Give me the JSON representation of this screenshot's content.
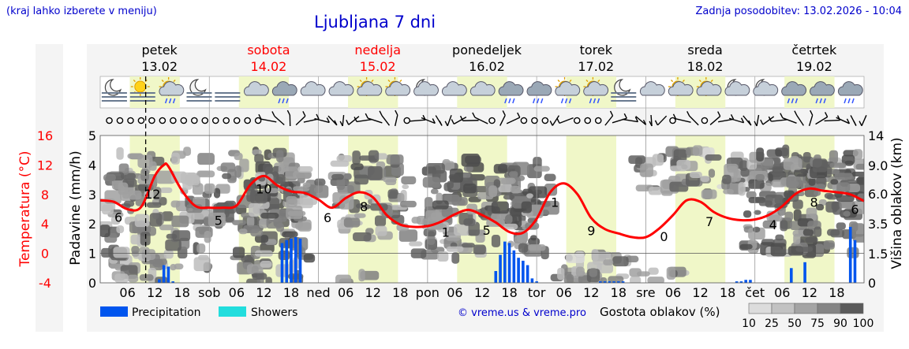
{
  "header": {
    "hint": "(kraj lahko izberete v meniju)",
    "title": "Ljubljana 7 dni",
    "updated": "Zadnja posodobitev: 13.02.2026 - 10:04"
  },
  "days": [
    {
      "name": "petek",
      "date": "13.02",
      "weekend": false
    },
    {
      "name": "sobota",
      "date": "14.02",
      "weekend": true
    },
    {
      "name": "nedelja",
      "date": "15.02",
      "weekend": true
    },
    {
      "name": "ponedeljek",
      "date": "16.02",
      "weekend": false
    },
    {
      "name": "torek",
      "date": "17.02",
      "weekend": false
    },
    {
      "name": "sreda",
      "date": "18.02",
      "weekend": false
    },
    {
      "name": "četrtek",
      "date": "19.02",
      "weekend": false
    }
  ],
  "weather_icons": [
    "moon-fog-icon",
    "sun-fog-icon",
    "sun-rain-icon",
    "moon-fog-icon",
    "fog-icon",
    "cloud-icon",
    "rain-cloud-icon",
    "cloud-icon",
    "cloud-icon",
    "sun-cloud-icon",
    "sun-cloud-icon",
    "moon-cloud-icon",
    "cloud-icon",
    "cloud-icon",
    "rain-cloud-icon",
    "rain-cloud-icon",
    "sun-rain-icon",
    "sun-rain-icon",
    "moon-fog-icon",
    "cloud-icon",
    "sun-cloud-icon",
    "sun-cloud-icon",
    "moon-cloud-icon",
    "moon-cloud-icon",
    "rain-cloud-icon",
    "rain-cloud-icon",
    "rain-cloud-icon"
  ],
  "wind_symbols": [
    "calm",
    "calm",
    "calm",
    "calm",
    "calm",
    "calm",
    "calm",
    "calm",
    "calm",
    "calm",
    "calm",
    "calm",
    "calm",
    "calm",
    "calm",
    "barb",
    "barb",
    "barb",
    "barb",
    "barb",
    "barb",
    "barb",
    "barb",
    "barb",
    "barb",
    "barb",
    "barb",
    "barb",
    "calm",
    "barb",
    "barb",
    "barb",
    "barb",
    "barb",
    "barb",
    "barb",
    "calm",
    "barb",
    "barb",
    "calm",
    "calm",
    "calm",
    "barb",
    "barb",
    "calm",
    "calm",
    "calm",
    "barb",
    "barb",
    "barb",
    "barb",
    "barb",
    "barb",
    "calm",
    "barb",
    "barb",
    "calm",
    "barb",
    "barb",
    "barb",
    "barb",
    "barb",
    "barb",
    "barb",
    "barb",
    "barb",
    "barb",
    "barb",
    "barb",
    "barb",
    "barb",
    "barb"
  ],
  "legend": {
    "precipitation": "Precipitation",
    "showers": "Showers",
    "copyright": "© vreme.us & vreme.pro",
    "cloud_density_label": "Gostota oblakov (%)",
    "cloud_levels": [
      "10",
      "25",
      "50",
      "75",
      "90",
      "100"
    ],
    "precip_color": "#0055ee",
    "showers_color": "#22dddd"
  },
  "chart_data": {
    "type": "line",
    "x_unit": "hour",
    "x_range": [
      0,
      168
    ],
    "now_marker": 10,
    "x_tick_labels": [
      "06",
      "12",
      "18",
      "sob",
      "06",
      "12",
      "18",
      "ned",
      "06",
      "12",
      "18",
      "pon",
      "06",
      "12",
      "18",
      "tor",
      "06",
      "12",
      "18",
      "sre",
      "06",
      "12",
      "18",
      "čet",
      "06",
      "12",
      "18"
    ],
    "x_tick_hours": [
      6,
      12,
      18,
      24,
      30,
      36,
      42,
      48,
      54,
      60,
      66,
      72,
      78,
      84,
      90,
      96,
      102,
      108,
      114,
      120,
      126,
      132,
      138,
      144,
      150,
      156,
      162
    ],
    "left_axis_precip": {
      "label": "Padavine (mm/h)",
      "range": [
        0,
        5
      ],
      "ticks": [
        "0",
        "1",
        "2",
        "3",
        "4",
        "5"
      ]
    },
    "left_axis_temp": {
      "label": "Temperatura (°C)",
      "range": [
        -4,
        16
      ],
      "ticks": [
        "-4",
        "0",
        "4",
        "8",
        "12",
        "16"
      ],
      "color": "#ff0000"
    },
    "right_axis": {
      "label": "Višina oblakov (km)",
      "range": [
        0,
        14
      ],
      "ticks": [
        "0",
        "1.5",
        "3.5",
        "6.0",
        "9.0",
        "14"
      ]
    },
    "temperature": {
      "name": "Temperatura",
      "color": "#ff0000",
      "x": [
        0,
        3,
        6,
        9,
        12,
        14,
        15,
        18,
        21,
        24,
        27,
        30,
        33,
        36,
        39,
        42,
        45,
        48,
        51,
        54,
        57,
        60,
        63,
        66,
        69,
        72,
        75,
        78,
        81,
        84,
        87,
        90,
        93,
        96,
        99,
        102,
        105,
        108,
        111,
        114,
        117,
        120,
        123,
        126,
        129,
        132,
        135,
        138,
        141,
        144,
        147,
        150,
        153,
        156,
        159,
        162,
        165,
        168
      ],
      "y": [
        7.2,
        7,
        6,
        6.3,
        10.5,
        12,
        11.8,
        8.5,
        6.4,
        6.2,
        6.2,
        6.5,
        9.3,
        10.5,
        9.2,
        8.4,
        8.2,
        7.3,
        6.2,
        7.5,
        8.3,
        7.6,
        5.2,
        3.9,
        3.6,
        3.7,
        4.3,
        5.3,
        5.9,
        5.2,
        4.2,
        2.9,
        2.8,
        4.7,
        8.3,
        9.5,
        8,
        4.8,
        3.3,
        2.7,
        2.2,
        2.2,
        3.4,
        5.2,
        7.2,
        7,
        5.6,
        4.8,
        4.5,
        4.6,
        5.2,
        6.4,
        8.1,
        8.8,
        8.5,
        8.3,
        8.0,
        7.1
      ]
    },
    "temperature_labels": [
      {
        "x": 4,
        "text": "6"
      },
      {
        "x": 11.5,
        "text": "12"
      },
      {
        "x": 26,
        "text": "5"
      },
      {
        "x": 36,
        "text": "10"
      },
      {
        "x": 50,
        "text": "6"
      },
      {
        "x": 58,
        "text": "8"
      },
      {
        "x": 76,
        "text": "1"
      },
      {
        "x": 85,
        "text": "5"
      },
      {
        "x": 100,
        "text": "1"
      },
      {
        "x": 108,
        "text": "9"
      },
      {
        "x": 124,
        "text": "0"
      },
      {
        "x": 134,
        "text": "7"
      },
      {
        "x": 148,
        "text": "4"
      },
      {
        "x": 157,
        "text": "8"
      },
      {
        "x": 166,
        "text": "6"
      }
    ],
    "precipitation": {
      "name": "Precipitation",
      "x": [
        13,
        14,
        15,
        16,
        40,
        41,
        42,
        43,
        44,
        87,
        88,
        89,
        90,
        91,
        92,
        93,
        94,
        95,
        96,
        110,
        111,
        112,
        113,
        114,
        115,
        140,
        141,
        142,
        143,
        152,
        155,
        165,
        166
      ],
      "y": [
        0.12,
        0.6,
        0.55,
        0.05,
        1.35,
        1.45,
        1.5,
        1.55,
        1.5,
        0.4,
        0.95,
        1.4,
        1.35,
        1.1,
        0.85,
        0.75,
        0.6,
        0.15,
        0.05,
        0.05,
        0.05,
        0.05,
        0.05,
        0.05,
        0.05,
        0.05,
        0.05,
        0.1,
        0.1,
        0.5,
        0.7,
        1.9,
        1.45
      ]
    }
  }
}
